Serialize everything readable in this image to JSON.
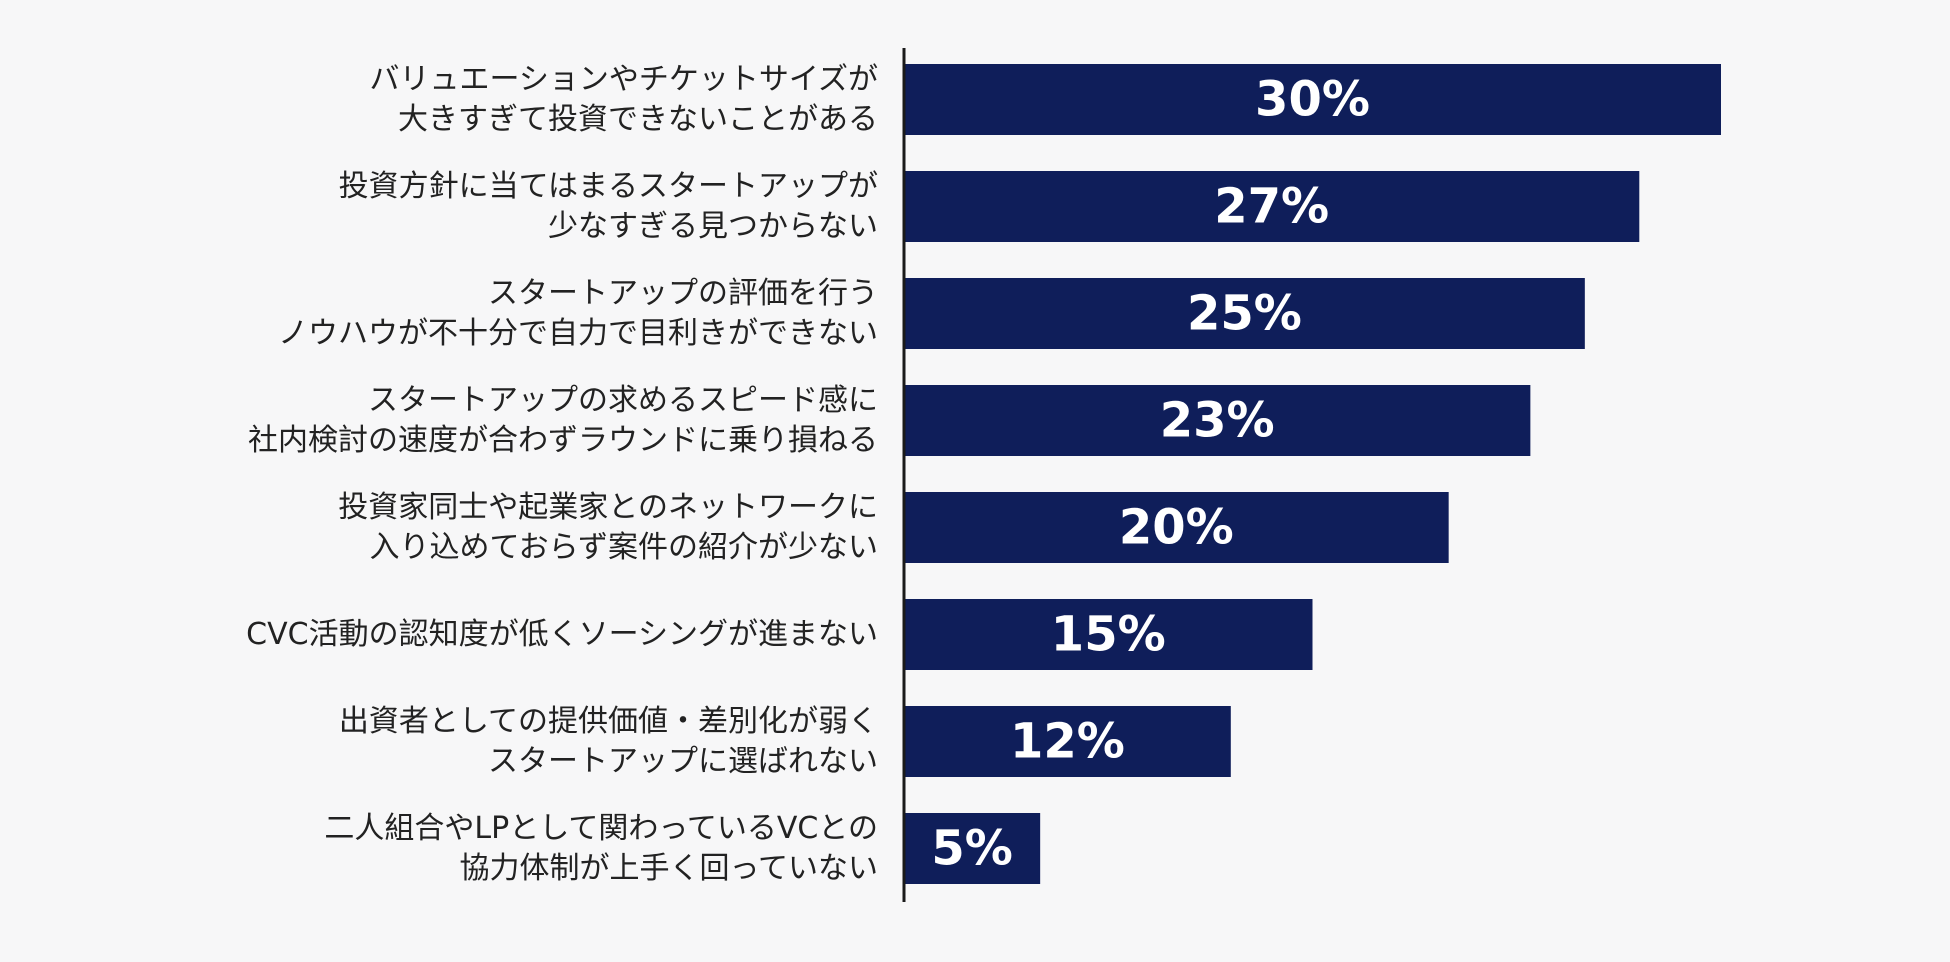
{
  "chart_data": {
    "type": "bar",
    "orientation": "horizontal",
    "categories": [
      [
        "バリュエーションやチケットサイズが",
        "大きすぎて投資できないことがある"
      ],
      [
        "投資方針に当てはまるスタートアップが",
        "少なすぎる見つからない"
      ],
      [
        "スタートアップの評価を行う",
        "ノウハウが不十分で自力で目利きができない"
      ],
      [
        "スタートアップの求めるスピード感に",
        "社内検討の速度が合わずラウンドに乗り損ねる"
      ],
      [
        "投資家同士や起業家とのネットワークに",
        "入り込めておらず案件の紹介が少ない"
      ],
      [
        "CVC活動の認知度が低くソーシングが進まない"
      ],
      [
        "出資者としての提供価値・差別化が弱く",
        "スタートアップに選ばれない"
      ],
      [
        "二人組合やLPとして関わっているVCとの",
        "協力体制が上手く回っていない"
      ]
    ],
    "values": [
      30,
      27,
      25,
      23,
      20,
      15,
      12,
      5
    ],
    "value_labels": [
      "30%",
      "27%",
      "25%",
      "23%",
      "20%",
      "15%",
      "12%",
      "5%"
    ],
    "unit": "%",
    "xlim": [
      0,
      30
    ],
    "grid": false,
    "legend": "none",
    "bar_color": "#0f1e5a",
    "label_color": "#222222",
    "value_label_color": "#ffffff",
    "axis_color": "#1a1a1a",
    "background": "#f7f7f8"
  }
}
